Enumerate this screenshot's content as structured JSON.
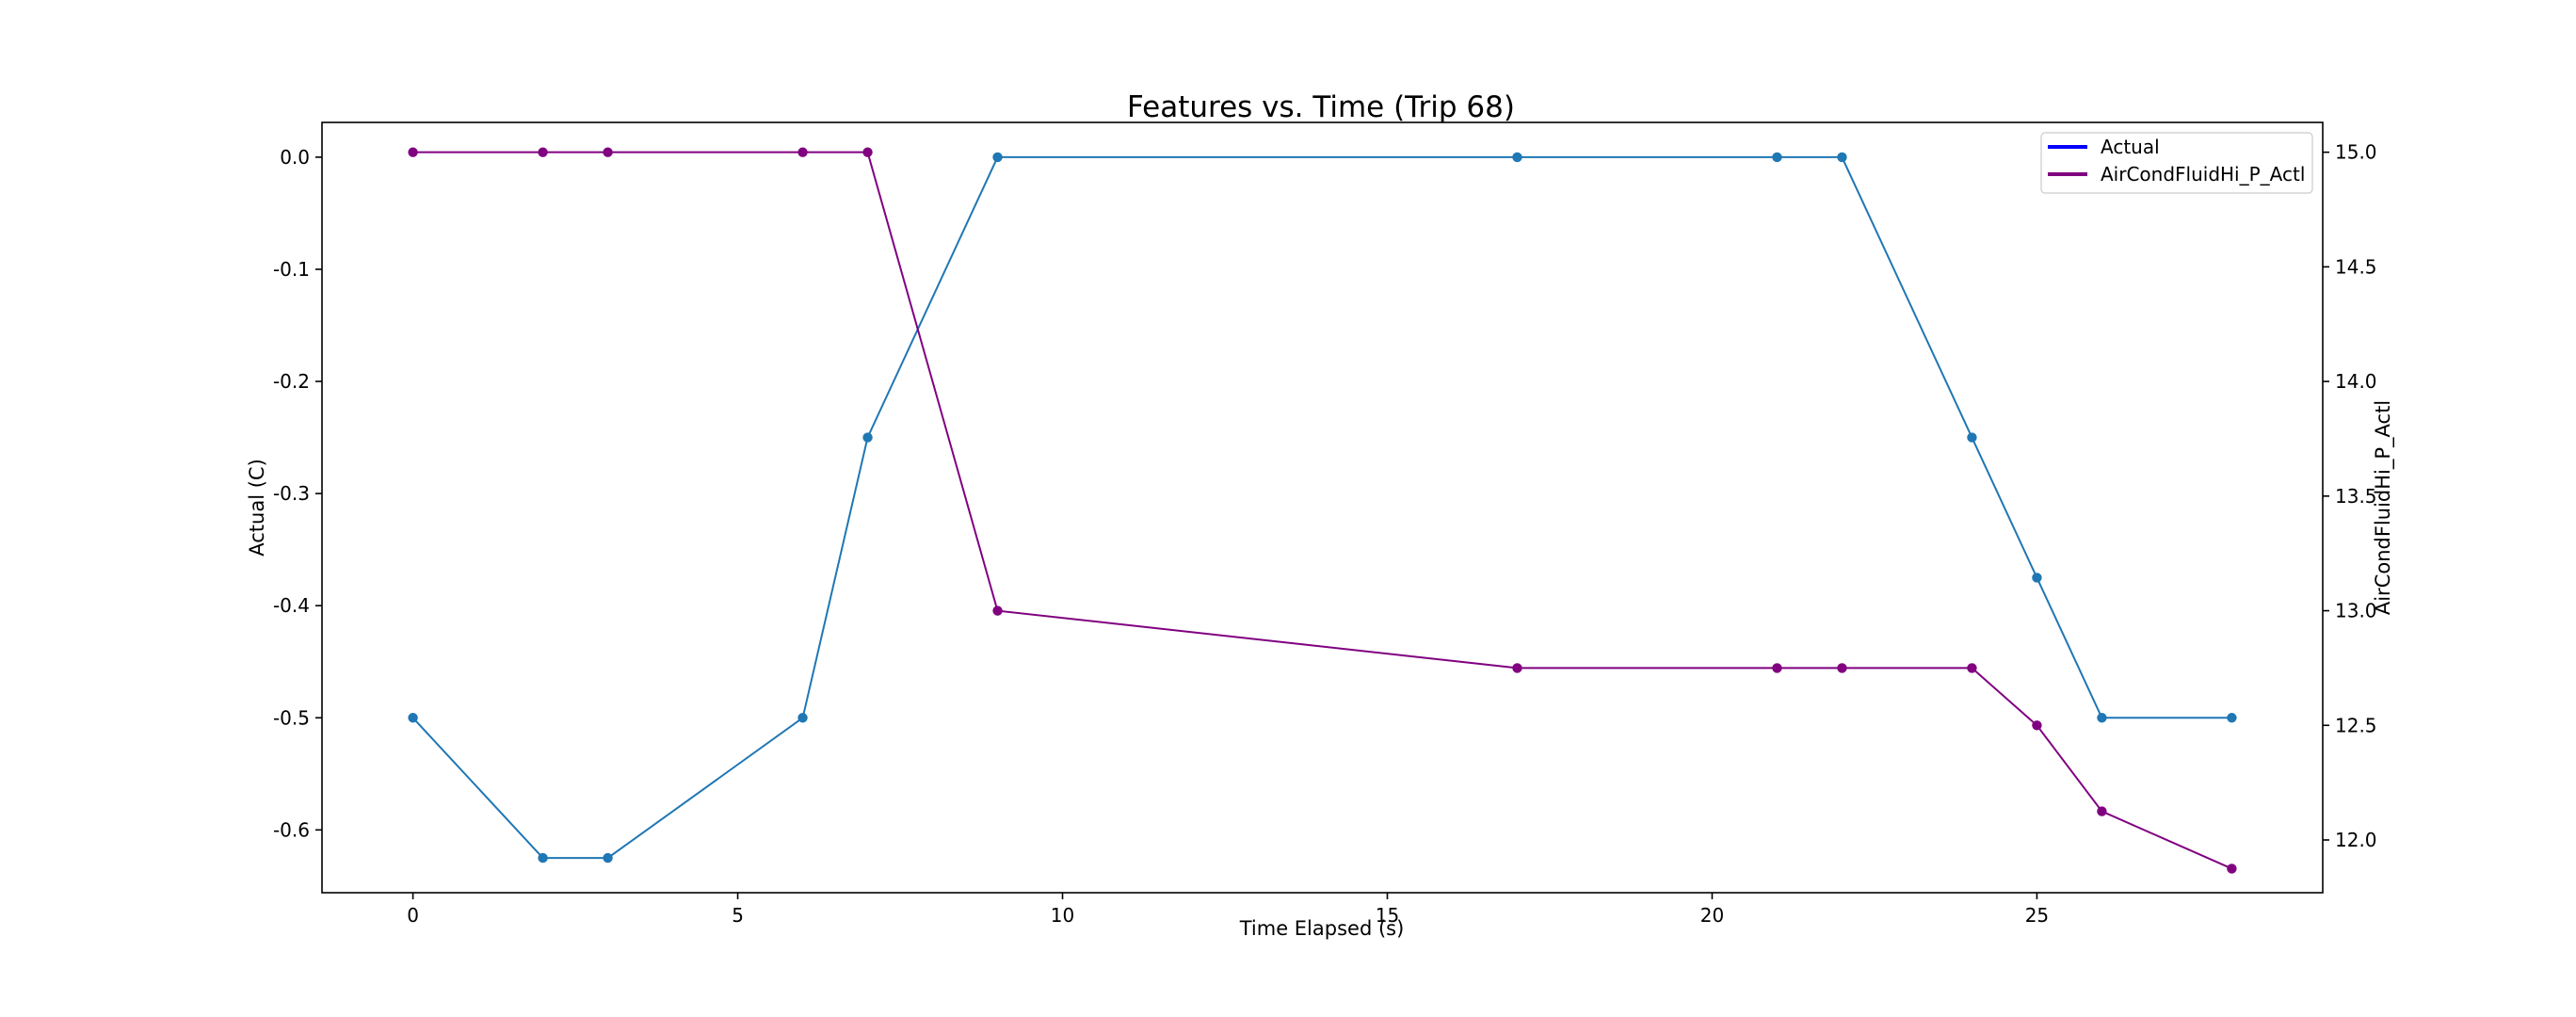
{
  "chart_data": {
    "type": "line",
    "title": "Features vs. Time (Trip 68)",
    "xlabel": "Time Elapsed (s)",
    "ylabel_left": "Actual (C)",
    "ylabel_right": "AirCondFluidHi_P_Actl",
    "xlim": [
      -1.4,
      29.4
    ],
    "ylim_left": [
      -0.656,
      0.031
    ],
    "ylim_right": [
      11.77,
      15.13
    ],
    "x_ticks": [
      0,
      5,
      10,
      15,
      20,
      25
    ],
    "y_ticks_left": [
      "0.0",
      "-0.1",
      "-0.2",
      "-0.3",
      "-0.4",
      "-0.5",
      "-0.6"
    ],
    "y_ticks_right": [
      "15.0",
      "14.5",
      "14.0",
      "13.5",
      "13.0",
      "12.5",
      "12.0"
    ],
    "grid": false,
    "legend_position": "top-right",
    "legend": [
      {
        "name": "Actual",
        "color": "#0000ff"
      },
      {
        "name": "AirCondFluidHi_P_Actl",
        "color": "#800080"
      }
    ],
    "series": [
      {
        "name": "Actual",
        "axis": "left",
        "color": "#1f77b4",
        "x": [
          0,
          2,
          3,
          6,
          7,
          9,
          17,
          21,
          22,
          24,
          25,
          26,
          28
        ],
        "values": [
          -0.5,
          -0.625,
          -0.625,
          -0.5,
          -0.25,
          0.0,
          0.0,
          0.0,
          0.0,
          -0.25,
          -0.375,
          -0.5,
          -0.5
        ]
      },
      {
        "name": "AirCondFluidHi_P_Actl",
        "axis": "right",
        "color": "#800080",
        "x": [
          0,
          2,
          3,
          6,
          7,
          9,
          17,
          21,
          22,
          24,
          25,
          26,
          28
        ],
        "values": [
          15.0,
          15.0,
          15.0,
          15.0,
          15.0,
          13.0,
          12.75,
          12.75,
          12.75,
          12.75,
          12.5,
          12.125,
          11.875
        ]
      }
    ]
  }
}
